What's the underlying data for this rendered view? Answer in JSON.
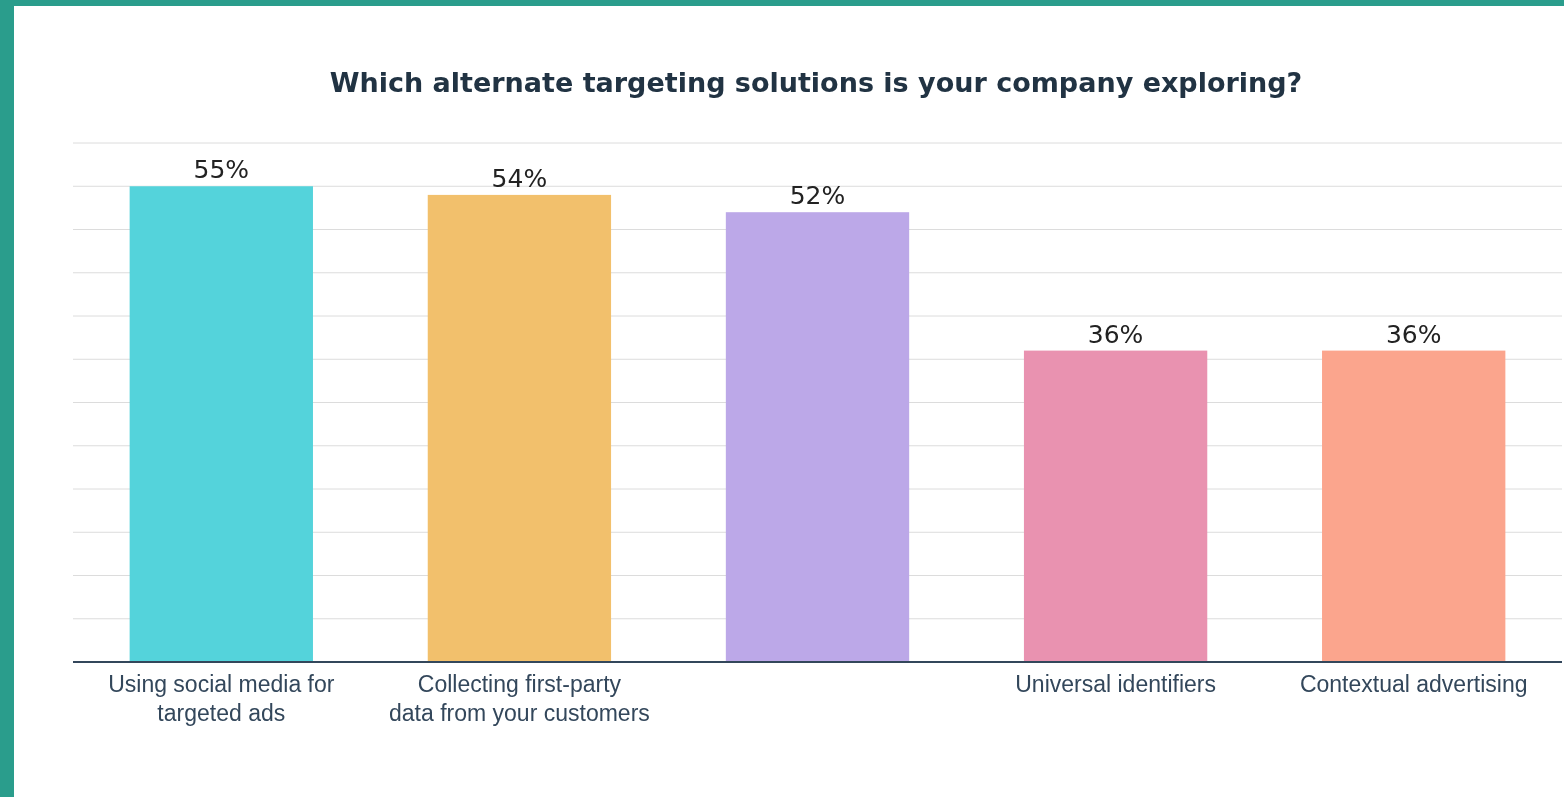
{
  "chart_data": {
    "type": "bar",
    "title": "Which alternate targeting solutions is your company exploring?",
    "categories": [
      "Using social media for targeted ads",
      "Collecting first-party data from your customers",
      null,
      "Universal identifiers",
      "Contextual advertising"
    ],
    "values": [
      55,
      54,
      52,
      36,
      36
    ],
    "colors": [
      "#54d3db",
      "#f2c06c",
      "#bca8e8",
      "#e992b0",
      "#fba58d"
    ],
    "ylim": [
      0,
      60
    ],
    "yticks": [
      {
        "value": 0,
        "label": null
      },
      {
        "value": 5,
        "label": null
      },
      {
        "value": 10,
        "label": null
      },
      {
        "value": 15,
        "label": null
      },
      {
        "value": 20,
        "label": null
      },
      {
        "value": 25,
        "label": null
      },
      {
        "value": 30,
        "label": null
      },
      {
        "value": 35,
        "label": null
      },
      {
        "value": 40,
        "label": null
      },
      {
        "value": 45,
        "label": null
      },
      {
        "value": 50,
        "label": null
      },
      {
        "value": 55,
        "label": null
      },
      {
        "value": 60,
        "label": null
      }
    ],
    "value_labels": [
      "55%",
      "54%",
      "52%",
      "36%",
      "36%"
    ],
    "grid": "y",
    "tick_labels": "x"
  }
}
